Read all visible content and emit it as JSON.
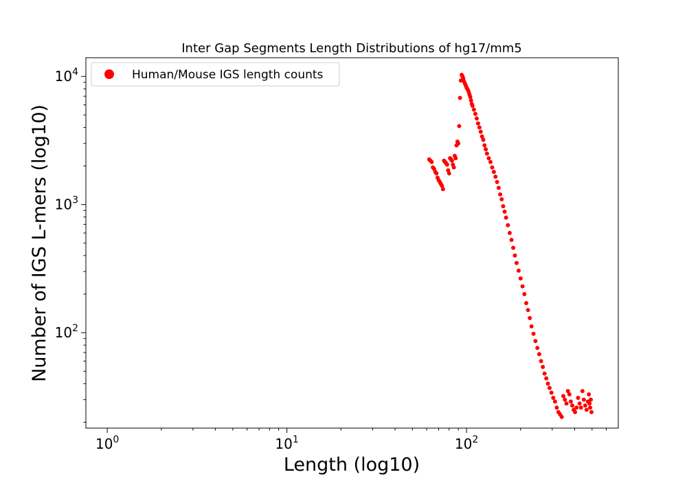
{
  "chart_data": {
    "type": "scatter",
    "title": "Inter Gap Segments Length Distributions of hg17/mm5",
    "xlabel": "Length (log10)",
    "ylabel": "Number of IGS L-mers (log10)",
    "xscale": "log",
    "yscale": "log",
    "xlim": [
      0.76,
      700
    ],
    "ylim": [
      18,
      14000
    ],
    "grid": false,
    "legend_position": "top-left",
    "x_ticks": [
      {
        "value": 1,
        "base": "10",
        "exp": "0"
      },
      {
        "value": 10,
        "base": "10",
        "exp": "1"
      },
      {
        "value": 100,
        "base": "10",
        "exp": "2"
      }
    ],
    "y_ticks": [
      {
        "value": 100,
        "base": "10",
        "exp": "2"
      },
      {
        "value": 1000,
        "base": "10",
        "exp": "3"
      },
      {
        "value": 10000,
        "base": "10",
        "exp": "4"
      }
    ],
    "series": [
      {
        "name": "Human/Mouse IGS length counts",
        "color": "#ff0000",
        "x": [
          62,
          63,
          64,
          65,
          66,
          67,
          68,
          69,
          70,
          71,
          72,
          73,
          74,
          75,
          76,
          77,
          78,
          79,
          80,
          81,
          82,
          83,
          84,
          85,
          86,
          87,
          88,
          89,
          90,
          91,
          92,
          93,
          94,
          95,
          96,
          97,
          98,
          99,
          100,
          101,
          102,
          103,
          104,
          105,
          106,
          107,
          108,
          110,
          112,
          114,
          116,
          118,
          120,
          122,
          124,
          126,
          128,
          130,
          133,
          136,
          139,
          142,
          145,
          148,
          151,
          154,
          157,
          160,
          163,
          166,
          170,
          174,
          178,
          182,
          186,
          190,
          195,
          200,
          205,
          210,
          215,
          220,
          225,
          230,
          236,
          242,
          248,
          254,
          260,
          266,
          272,
          278,
          284,
          290,
          297,
          304,
          311,
          318,
          325,
          332,
          339,
          346,
          353,
          360,
          367,
          374,
          381,
          388,
          395,
          402,
          410,
          418,
          426,
          434,
          442,
          450,
          458,
          466,
          474,
          480,
          484,
          488,
          492,
          496
        ],
        "y": [
          2250,
          2200,
          2150,
          1950,
          1900,
          1800,
          1750,
          1620,
          1550,
          1500,
          1450,
          1400,
          1320,
          2200,
          2150,
          2100,
          2050,
          1850,
          1750,
          2300,
          2250,
          2200,
          2050,
          1950,
          2400,
          2300,
          2900,
          3100,
          3000,
          4100,
          6800,
          9300,
          10300,
          10000,
          9600,
          9100,
          8800,
          8500,
          8200,
          8000,
          7800,
          7500,
          7200,
          6900,
          6500,
          6100,
          5900,
          5500,
          5100,
          4700,
          4300,
          4000,
          3700,
          3400,
          3200,
          2900,
          2700,
          2500,
          2300,
          2150,
          1950,
          1800,
          1650,
          1500,
          1350,
          1200,
          1100,
          970,
          880,
          790,
          690,
          600,
          530,
          460,
          400,
          350,
          305,
          265,
          230,
          200,
          170,
          150,
          130,
          112,
          98,
          86,
          76,
          68,
          60,
          54,
          48,
          44,
          40,
          37,
          34,
          31,
          29,
          26,
          24,
          23,
          22,
          32,
          30,
          28,
          35,
          33,
          29,
          27,
          25,
          24,
          26,
          31,
          28,
          26,
          35,
          30,
          27,
          25,
          29,
          33,
          28,
          26,
          30,
          24
        ]
      }
    ]
  }
}
